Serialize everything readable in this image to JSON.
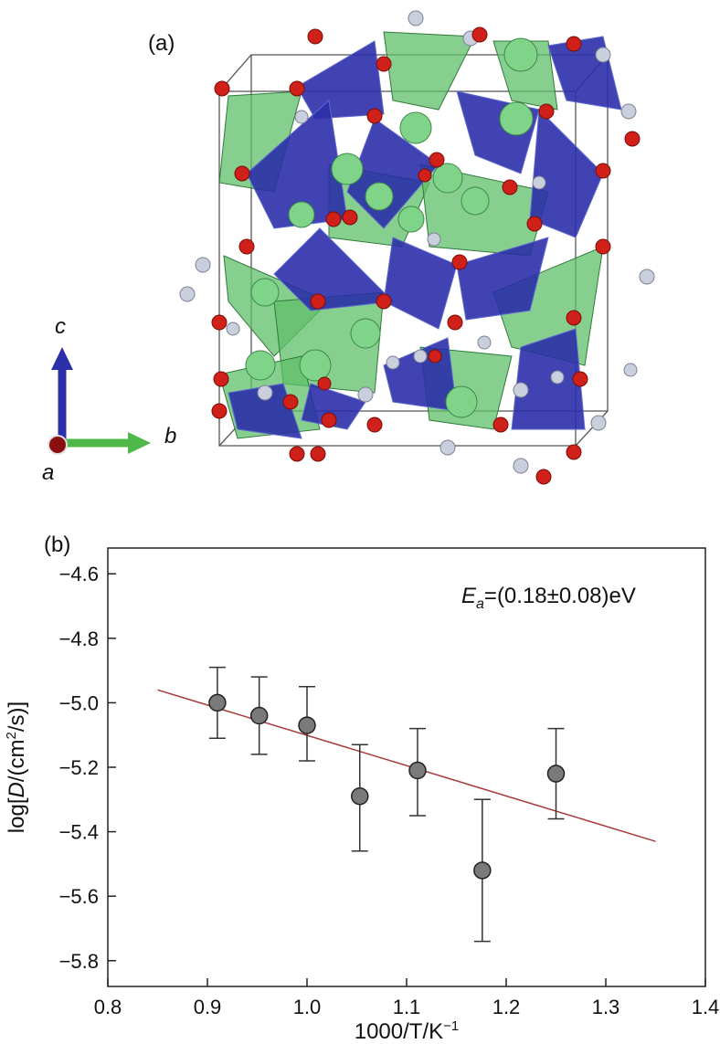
{
  "panel_a": {
    "label": "(a)",
    "axes": {
      "c": "c",
      "b": "b",
      "a": "a"
    },
    "colors": {
      "tetrahedron_blue": "#2b2fa8",
      "tetrahedron_green": "#5fbf6a",
      "oxygen": "#d0201a",
      "small_atom": "#c9cfdc",
      "large_atom": "#7fd48a"
    }
  },
  "panel_b": {
    "label": "(b)"
  },
  "chart_data": {
    "type": "scatter",
    "xlabel": "1000/T/K",
    "xlabel_sup": "−1",
    "ylabel_pre": "log[",
    "ylabel_italic": "D",
    "ylabel_mid": "/(cm",
    "ylabel_sup": "2",
    "ylabel_post": "/s)]",
    "xlim": [
      0.8,
      1.4
    ],
    "ylim": [
      -5.88,
      -4.52
    ],
    "xticks": [
      "0.8",
      "0.9",
      "1.0",
      "1.1",
      "1.2",
      "1.3",
      "1.4"
    ],
    "xtick_values": [
      0.8,
      0.9,
      1.0,
      1.1,
      1.2,
      1.3,
      1.4
    ],
    "yticks": [
      "−4.6",
      "−4.8",
      "−5.0",
      "−5.2",
      "−5.4",
      "−5.6",
      "−5.8"
    ],
    "ytick_values": [
      -4.6,
      -4.8,
      -5.0,
      -5.2,
      -5.4,
      -5.6,
      -5.8
    ],
    "points": [
      {
        "x": 0.91,
        "y": -5.0,
        "err_hi": -4.89,
        "err_lo": -5.11
      },
      {
        "x": 0.952,
        "y": -5.04,
        "err_hi": -4.92,
        "err_lo": -5.16
      },
      {
        "x": 1.0,
        "y": -5.07,
        "err_hi": -4.95,
        "err_lo": -5.18
      },
      {
        "x": 1.053,
        "y": -5.29,
        "err_hi": -5.13,
        "err_lo": -5.46
      },
      {
        "x": 1.111,
        "y": -5.21,
        "err_hi": -5.08,
        "err_lo": -5.35
      },
      {
        "x": 1.176,
        "y": -5.52,
        "err_hi": -5.3,
        "err_lo": -5.74
      },
      {
        "x": 1.25,
        "y": -5.22,
        "err_hi": -5.08,
        "err_lo": -5.36
      }
    ],
    "fit_line": {
      "x": [
        0.85,
        1.35
      ],
      "y": [
        -4.96,
        -5.43
      ],
      "color": "#a83a3a"
    },
    "marker_color": "#7a7a7a",
    "annotation": {
      "E": "E",
      "sub": "a",
      "text": "=(0.18±0.08)eV"
    },
    "grid": false
  }
}
